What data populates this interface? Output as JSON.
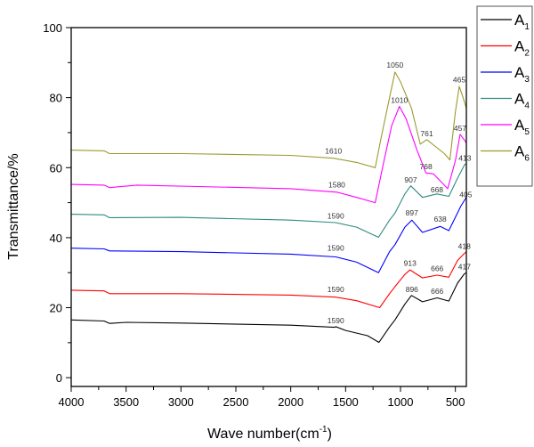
{
  "chart_data": {
    "type": "line",
    "title": "",
    "xlabel": "Wave number(cm",
    "xlabel_sup": "-1",
    "xlabel_close": ")",
    "ylabel": "Transmittance/%",
    "xlim": [
      4000,
      400
    ],
    "ylim": [
      -2.5,
      100
    ],
    "xticks": [
      4000,
      3500,
      3000,
      2500,
      2000,
      1500,
      1000,
      500
    ],
    "yticks": [
      0,
      20,
      40,
      60,
      80,
      100
    ],
    "grid": false,
    "legend_position": "top-right outside",
    "series": [
      {
        "name": "A",
        "sub": "1",
        "color": "#000000",
        "x": [
          4000,
          3700,
          3650,
          3500,
          3000,
          2000,
          1600,
          1590,
          1500,
          1300,
          1196,
          1100,
          1050,
          960,
          900,
          800,
          666,
          560,
          480,
          420,
          400
        ],
        "y": [
          16.5,
          16.2,
          15.5,
          15.8,
          15.6,
          15.0,
          14.4,
          14.6,
          13.5,
          12.0,
          10.1,
          14.5,
          16.5,
          21,
          23.5,
          21.7,
          22.8,
          21.9,
          27,
          29.6,
          30
        ]
      },
      {
        "name": "A",
        "sub": "2",
        "color": "#ff0000",
        "x": [
          4000,
          3700,
          3650,
          3000,
          2000,
          1590,
          1400,
          1190,
          1100,
          1050,
          960,
          913,
          800,
          666,
          560,
          480,
          418,
          400
        ],
        "y": [
          25,
          24.8,
          24,
          24,
          23.6,
          23,
          22,
          20,
          24,
          26,
          29.5,
          30.8,
          28.5,
          29.3,
          28.7,
          33.5,
          35.5,
          36
        ]
      },
      {
        "name": "A",
        "sub": "3",
        "color": "#0000ff",
        "x": [
          4000,
          3700,
          3650,
          3000,
          2000,
          1590,
          1400,
          1200,
          1100,
          1050,
          960,
          897,
          800,
          638,
          560,
          450,
          405,
          400
        ],
        "y": [
          37,
          36.8,
          36.2,
          36,
          35.3,
          34.5,
          33,
          30,
          36,
          38,
          43,
          45,
          41.5,
          43.2,
          42,
          49,
          51.3,
          51.5
        ]
      },
      {
        "name": "A",
        "sub": "4",
        "color": "#2e8b80",
        "x": [
          4000,
          3700,
          3650,
          3000,
          2000,
          1590,
          1400,
          1200,
          1100,
          1050,
          960,
          907,
          800,
          668,
          560,
          480,
          413,
          400
        ],
        "y": [
          46.7,
          46.5,
          45.7,
          45.8,
          45,
          44.3,
          43,
          40.1,
          45,
          47,
          52.5,
          54.8,
          51.5,
          52.5,
          51.8,
          57,
          61,
          61
        ]
      },
      {
        "name": "A",
        "sub": "5",
        "color": "#ff00ff",
        "x": [
          4000,
          3700,
          3650,
          3400,
          2000,
          1580,
          1400,
          1230,
          1150,
          1080,
          1010,
          950,
          850,
          768,
          700,
          570,
          500,
          457,
          420,
          400
        ],
        "y": [
          55.2,
          55,
          54.3,
          55,
          54,
          53,
          51.5,
          50,
          62,
          72,
          77.5,
          74,
          65,
          58.5,
          58.2,
          54,
          62,
          69.5,
          68,
          67
        ]
      },
      {
        "name": "A",
        "sub": "6",
        "color": "#9a9a30",
        "x": [
          4000,
          3700,
          3650,
          3000,
          2000,
          1610,
          1400,
          1230,
          1180,
          1100,
          1050,
          1000,
          900,
          820,
          761,
          600,
          550,
          500,
          465,
          430,
          400
        ],
        "y": [
          65,
          64.8,
          64,
          64,
          63.5,
          62.7,
          61.5,
          60,
          68,
          80,
          87.3,
          84.5,
          77,
          66.7,
          68,
          64,
          62.2,
          76,
          83.2,
          80,
          77
        ]
      }
    ],
    "annotations": [
      {
        "text": "1590",
        "x": 1590,
        "y": 15.5,
        "series": "A1"
      },
      {
        "text": "896",
        "x": 896,
        "y": 24.5,
        "series": "A1"
      },
      {
        "text": "666",
        "x": 666,
        "y": 24,
        "series": "A1"
      },
      {
        "text": "417",
        "x": 417,
        "y": 31,
        "series": "A1"
      },
      {
        "text": "1590",
        "x": 1590,
        "y": 24.5,
        "series": "A2"
      },
      {
        "text": "913",
        "x": 913,
        "y": 32,
        "series": "A2"
      },
      {
        "text": "666",
        "x": 666,
        "y": 30.5,
        "series": "A2"
      },
      {
        "text": "418",
        "x": 418,
        "y": 36.8,
        "series": "A2"
      },
      {
        "text": "1590",
        "x": 1590,
        "y": 36.3,
        "series": "A3"
      },
      {
        "text": "897",
        "x": 897,
        "y": 46.3,
        "series": "A3"
      },
      {
        "text": "638",
        "x": 638,
        "y": 44.5,
        "series": "A3"
      },
      {
        "text": "405",
        "x": 405,
        "y": 51.5,
        "series": "A4"
      },
      {
        "text": "1590",
        "x": 1590,
        "y": 45.5,
        "series": "A4"
      },
      {
        "text": "907",
        "x": 907,
        "y": 55.8,
        "series": "A4"
      },
      {
        "text": "668",
        "x": 668,
        "y": 53,
        "series": "A4"
      },
      {
        "text": "413",
        "x": 413,
        "y": 62,
        "series": "A4"
      },
      {
        "text": "1580",
        "x": 1580,
        "y": 54.3,
        "series": "A5"
      },
      {
        "text": "1010",
        "x": 1010,
        "y": 78.5,
        "series": "A5"
      },
      {
        "text": "768",
        "x": 768,
        "y": 59.5,
        "series": "A5"
      },
      {
        "text": "457",
        "x": 457,
        "y": 70.5,
        "series": "A5"
      },
      {
        "text": "1610",
        "x": 1610,
        "y": 64,
        "series": "A6"
      },
      {
        "text": "1050",
        "x": 1050,
        "y": 88.5,
        "series": "A6"
      },
      {
        "text": "761",
        "x": 761,
        "y": 69,
        "series": "A6"
      },
      {
        "text": "465",
        "x": 465,
        "y": 84.3,
        "series": "A6"
      }
    ]
  }
}
